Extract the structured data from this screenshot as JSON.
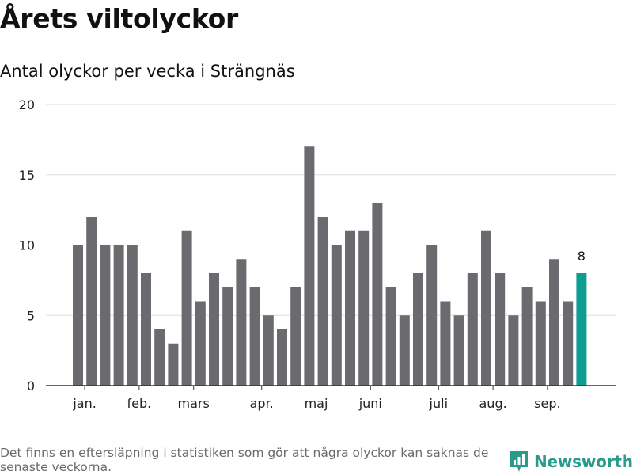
{
  "header": {
    "title": "Årets viltolyckor",
    "subtitle": "Antal olyckor per vecka i Strängnäs"
  },
  "footer": {
    "note": "Det finns en eftersläpning i statistiken som gör att några olyckor kan saknas de senaste veckorna.",
    "brand": "Newsworthy"
  },
  "colors": {
    "bar": "#6b6a6f",
    "highlight": "#0e9c93",
    "grid": "#dddddd",
    "axis": "#333333",
    "brand": "#2a9a8a"
  },
  "chart_data": {
    "type": "bar",
    "values": [
      10,
      12,
      10,
      10,
      10,
      8,
      4,
      3,
      11,
      6,
      8,
      7,
      9,
      7,
      5,
      4,
      7,
      17,
      12,
      10,
      11,
      11,
      13,
      7,
      5,
      8,
      10,
      6,
      5,
      8,
      11,
      8,
      5,
      7,
      6,
      9,
      6,
      8
    ],
    "highlight_last": true,
    "highlight_label": "8",
    "month_ticks": [
      {
        "label": "jan.",
        "bar_index": 0.5
      },
      {
        "label": "feb.",
        "bar_index": 4.5
      },
      {
        "label": "mars",
        "bar_index": 8.5
      },
      {
        "label": "apr.",
        "bar_index": 13.5
      },
      {
        "label": "maj",
        "bar_index": 17.5
      },
      {
        "label": "juni",
        "bar_index": 21.5
      },
      {
        "label": "juli",
        "bar_index": 26.5
      },
      {
        "label": "aug.",
        "bar_index": 30.5
      },
      {
        "label": "sep.",
        "bar_index": 34.5
      }
    ],
    "yticks": [
      0,
      5,
      10,
      15,
      20
    ],
    "ylim": [
      0,
      20
    ],
    "grid": true
  }
}
